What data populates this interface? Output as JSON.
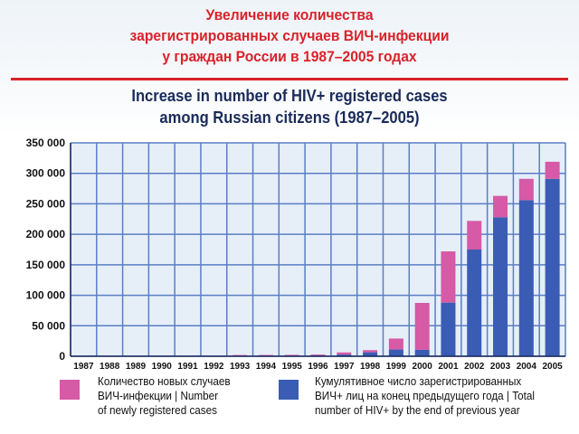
{
  "title": {
    "ru_line1": "Увеличение количества",
    "ru_line2": "зарегистрированных случаев ВИЧ-инфекции",
    "ru_line3": "у граждан России в 1987–2005 годах",
    "en_line1": "Increase in number of HIV+ registered cases",
    "en_line2": "among Russian citizens (1987–2005)"
  },
  "legend": {
    "new_cases": {
      "line1": "Количество новых случаев",
      "line2": "ВИЧ-инфекции | Number",
      "line3": "of newly registered cases"
    },
    "cumulative": {
      "line1": "Кумулятивное число зарегистрированных",
      "line2": "ВИЧ+ лиц на конец предыдущего года | Total",
      "line3": "number of HIV+ by the end of previous year"
    }
  },
  "colors": {
    "new_cases": "#d65aa6",
    "cumulative": "#3a5cb4",
    "grid": "#5a7fc4",
    "plot_bg": "#e6eef8",
    "title_ru": "#d8232a",
    "title_en": "#1a2b5a"
  },
  "chart_data": {
    "type": "bar",
    "stacked": true,
    "categories": [
      "1987",
      "1988",
      "1989",
      "1990",
      "1991",
      "1992",
      "1993",
      "1994",
      "1995",
      "1996",
      "1997",
      "1998",
      "1999",
      "2000",
      "2001",
      "2002",
      "2003",
      "2004",
      "2005"
    ],
    "series": [
      {
        "name": "Кумулятивное число зарегистрированных ВИЧ+ лиц на конец предыдущего года | Total number of HIV+ by the end of previous year",
        "values": [
          0,
          0,
          0,
          0,
          0,
          0,
          800,
          900,
          1100,
          1300,
          2800,
          6500,
          11000,
          10500,
          88000,
          175000,
          228000,
          256000,
          291000
        ]
      },
      {
        "name": "Количество новых случаев ВИЧ-инфекции | Number of newly registered cases",
        "values": [
          0,
          0,
          0,
          0,
          0,
          0,
          1200,
          1200,
          1200,
          1500,
          3500,
          3500,
          18000,
          77000,
          84000,
          47000,
          35000,
          35000,
          28000
        ]
      }
    ],
    "y_ticks": [
      "0",
      "50 000",
      "100 000",
      "150 000",
      "200 000",
      "250 000",
      "300 000",
      "350 000"
    ],
    "ylim": [
      0,
      350000
    ],
    "grid": true,
    "legend_position": "bottom"
  }
}
